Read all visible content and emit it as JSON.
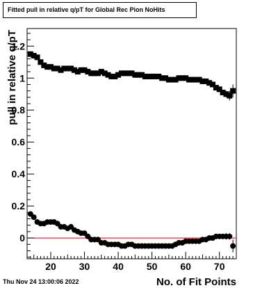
{
  "title": "Fitted pull in relative q/pT for Global Rec Pion NoHits",
  "timestamp": "Thu Nov 24 13:00:06 2022",
  "chart_data": {
    "type": "scatter",
    "title": "Fitted pull in relative q/pT for Global Rec Pion NoHits",
    "xlabel": "No. of Fit Points",
    "ylabel": "pull in relative q/pT",
    "xlim": [
      13,
      75
    ],
    "ylim": [
      -0.13,
      1.31
    ],
    "xticks": [
      20,
      30,
      40,
      50,
      60,
      70
    ],
    "yticks": [
      0,
      0.2,
      0.4,
      0.6,
      0.8,
      1,
      1.2
    ],
    "ytick_labels": [
      "0",
      "0.2",
      "0.4",
      "0.6",
      "0.8",
      "1",
      "1.2"
    ],
    "reference_line": {
      "y": 0,
      "color": "#e00000"
    },
    "series": [
      {
        "marker": "square",
        "x": [
          14,
          15,
          16,
          17,
          18,
          19,
          20,
          21,
          22,
          23,
          24,
          25,
          26,
          27,
          28,
          29,
          30,
          31,
          32,
          33,
          34,
          35,
          36,
          37,
          38,
          39,
          40,
          41,
          42,
          43,
          44,
          45,
          46,
          47,
          48,
          49,
          50,
          51,
          52,
          53,
          54,
          55,
          56,
          57,
          58,
          59,
          60,
          61,
          62,
          63,
          64,
          65,
          66,
          67,
          68,
          69,
          70,
          71,
          72,
          73,
          74
        ],
        "y": [
          1.15,
          1.14,
          1.13,
          1.1,
          1.08,
          1.07,
          1.07,
          1.06,
          1.06,
          1.05,
          1.06,
          1.06,
          1.06,
          1.05,
          1.04,
          1.05,
          1.05,
          1.04,
          1.03,
          1.03,
          1.03,
          1.04,
          1.03,
          1.02,
          1.01,
          1.01,
          1.02,
          1.03,
          1.03,
          1.03,
          1.03,
          1.02,
          1.02,
          1.02,
          1.01,
          1.01,
          1.01,
          1.01,
          1.01,
          1.0,
          1.0,
          0.99,
          0.99,
          0.99,
          1.0,
          1.0,
          1.0,
          0.99,
          0.99,
          0.99,
          0.99,
          0.98,
          0.98,
          0.97,
          0.96,
          0.94,
          0.93,
          0.91,
          0.9,
          0.89,
          0.92
        ],
        "err": [
          0,
          0,
          0,
          0,
          0,
          0,
          0,
          0,
          0,
          0,
          0,
          0,
          0,
          0,
          0,
          0,
          0,
          0,
          0,
          0,
          0,
          0,
          0,
          0,
          0,
          0,
          0,
          0,
          0,
          0,
          0,
          0,
          0,
          0,
          0,
          0,
          0,
          0,
          0,
          0,
          0,
          0,
          0,
          0,
          0,
          0,
          0,
          0,
          0,
          0,
          0,
          0,
          0,
          0,
          0,
          0,
          0,
          0,
          0.02,
          0.03,
          0.04
        ]
      },
      {
        "marker": "circle",
        "x": [
          14,
          15,
          16,
          17,
          18,
          19,
          20,
          21,
          22,
          23,
          24,
          25,
          26,
          27,
          28,
          29,
          30,
          31,
          32,
          33,
          34,
          35,
          36,
          37,
          38,
          39,
          40,
          41,
          42,
          43,
          44,
          45,
          46,
          47,
          48,
          49,
          50,
          51,
          52,
          53,
          54,
          55,
          56,
          57,
          58,
          59,
          60,
          61,
          62,
          63,
          64,
          65,
          66,
          67,
          68,
          69,
          70,
          71,
          72,
          73,
          74
        ],
        "y": [
          0.15,
          0.13,
          0.1,
          0.09,
          0.09,
          0.1,
          0.1,
          0.1,
          0.09,
          0.07,
          0.07,
          0.06,
          0.07,
          0.05,
          0.04,
          0.03,
          0.03,
          0.01,
          -0.01,
          -0.01,
          -0.01,
          -0.03,
          -0.03,
          -0.04,
          -0.04,
          -0.04,
          -0.04,
          -0.05,
          -0.05,
          -0.04,
          -0.04,
          -0.05,
          -0.05,
          -0.05,
          -0.05,
          -0.05,
          -0.05,
          -0.05,
          -0.05,
          -0.05,
          -0.05,
          -0.05,
          -0.05,
          -0.04,
          -0.03,
          -0.03,
          -0.02,
          -0.02,
          -0.02,
          -0.02,
          -0.02,
          -0.01,
          -0.01,
          0.0,
          0.0,
          0.01,
          0.01,
          0.01,
          0.01,
          0.01,
          -0.05
        ],
        "err": [
          0,
          0,
          0,
          0,
          0,
          0,
          0,
          0,
          0,
          0,
          0,
          0,
          0,
          0,
          0,
          0,
          0,
          0,
          0,
          0,
          0,
          0,
          0,
          0,
          0,
          0,
          0,
          0,
          0,
          0,
          0,
          0,
          0,
          0,
          0,
          0,
          0,
          0,
          0,
          0,
          0,
          0,
          0,
          0,
          0,
          0,
          0,
          0,
          0,
          0,
          0,
          0,
          0,
          0,
          0,
          0,
          0,
          0,
          0.02,
          0.02,
          0.04
        ]
      }
    ],
    "grid": false,
    "legend": "none"
  }
}
